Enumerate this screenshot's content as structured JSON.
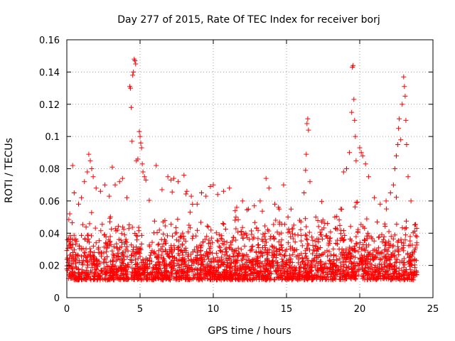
{
  "chart_data": {
    "type": "scatter",
    "title": "Day 277 of 2015, Rate Of TEC Index for receiver borj",
    "xlabel": "GPS time / hours",
    "ylabel": "ROTI / TECUs",
    "xlim": [
      0,
      25
    ],
    "ylim": [
      0,
      0.16
    ],
    "xticks": [
      0,
      5,
      10,
      15,
      20,
      25
    ],
    "yticks": [
      0,
      0.02,
      0.04,
      0.06,
      0.08,
      0.1,
      0.12,
      0.14,
      0.16
    ],
    "xtick_labels": [
      "0",
      "5",
      "10",
      "15",
      "20",
      "25"
    ],
    "ytick_labels": [
      "0",
      "0.02",
      "0.04",
      "0.06",
      "0.08",
      "0.1",
      "0.12",
      "0.14",
      "0.16"
    ],
    "grid": true,
    "marker": "plus",
    "marker_color": "#ff0000",
    "series": [
      {
        "name": "ROTI",
        "x_range_hours": [
          0,
          23.9
        ],
        "typical_band": [
          0.005,
          0.045
        ],
        "points": [
          [
            0.2,
            0.052
          ],
          [
            0.4,
            0.082
          ],
          [
            0.5,
            0.065
          ],
          [
            0.8,
            0.058
          ],
          [
            1.0,
            0.062
          ],
          [
            1.2,
            0.072
          ],
          [
            1.4,
            0.078
          ],
          [
            1.5,
            0.089
          ],
          [
            1.6,
            0.085
          ],
          [
            1.7,
            0.08
          ],
          [
            1.8,
            0.075
          ],
          [
            2.0,
            0.068
          ],
          [
            2.3,
            0.066
          ],
          [
            2.6,
            0.07
          ],
          [
            2.9,
            0.063
          ],
          [
            3.1,
            0.081
          ],
          [
            3.3,
            0.07
          ],
          [
            3.6,
            0.072
          ],
          [
            3.8,
            0.074
          ],
          [
            4.1,
            0.062
          ],
          [
            4.3,
            0.131
          ],
          [
            4.35,
            0.13
          ],
          [
            4.4,
            0.118
          ],
          [
            4.45,
            0.097
          ],
          [
            4.5,
            0.138
          ],
          [
            4.55,
            0.14
          ],
          [
            4.6,
            0.148
          ],
          [
            4.65,
            0.147
          ],
          [
            4.7,
            0.145
          ],
          [
            4.75,
            0.085
          ],
          [
            4.85,
            0.086
          ],
          [
            4.95,
            0.103
          ],
          [
            5.0,
            0.1
          ],
          [
            5.05,
            0.096
          ],
          [
            5.1,
            0.093
          ],
          [
            5.15,
            0.083
          ],
          [
            5.2,
            0.078
          ],
          [
            5.3,
            0.075
          ],
          [
            5.4,
            0.073
          ],
          [
            6.1,
            0.082
          ],
          [
            6.5,
            0.067
          ],
          [
            6.9,
            0.075
          ],
          [
            7.1,
            0.073
          ],
          [
            7.3,
            0.074
          ],
          [
            7.6,
            0.072
          ],
          [
            8.0,
            0.076
          ],
          [
            8.2,
            0.066
          ],
          [
            8.5,
            0.063
          ],
          [
            8.9,
            0.058
          ],
          [
            9.2,
            0.065
          ],
          [
            9.5,
            0.063
          ],
          [
            9.8,
            0.069
          ],
          [
            10.0,
            0.07
          ],
          [
            10.3,
            0.064
          ],
          [
            10.7,
            0.066
          ],
          [
            11.1,
            0.068
          ],
          [
            11.6,
            0.056
          ],
          [
            12.0,
            0.06
          ],
          [
            12.4,
            0.055
          ],
          [
            12.8,
            0.057
          ],
          [
            13.2,
            0.06
          ],
          [
            13.6,
            0.074
          ],
          [
            13.8,
            0.068
          ],
          [
            14.2,
            0.058
          ],
          [
            14.5,
            0.055
          ],
          [
            14.8,
            0.07
          ],
          [
            15.1,
            0.05
          ],
          [
            15.5,
            0.045
          ],
          [
            15.9,
            0.048
          ],
          [
            16.2,
            0.065
          ],
          [
            16.3,
            0.079
          ],
          [
            16.35,
            0.089
          ],
          [
            16.4,
            0.108
          ],
          [
            16.45,
            0.111
          ],
          [
            16.5,
            0.104
          ],
          [
            16.6,
            0.072
          ],
          [
            17.0,
            0.05
          ],
          [
            17.4,
            0.047
          ],
          [
            17.8,
            0.046
          ],
          [
            18.3,
            0.05
          ],
          [
            18.7,
            0.055
          ],
          [
            18.9,
            0.078
          ],
          [
            19.1,
            0.08
          ],
          [
            19.3,
            0.09
          ],
          [
            19.45,
            0.115
          ],
          [
            19.5,
            0.143
          ],
          [
            19.55,
            0.144
          ],
          [
            19.6,
            0.123
          ],
          [
            19.65,
            0.11
          ],
          [
            19.7,
            0.1
          ],
          [
            19.75,
            0.085
          ],
          [
            20.0,
            0.093
          ],
          [
            20.1,
            0.09
          ],
          [
            20.2,
            0.088
          ],
          [
            20.4,
            0.083
          ],
          [
            20.6,
            0.075
          ],
          [
            21.0,
            0.062
          ],
          [
            21.4,
            0.058
          ],
          [
            21.8,
            0.06
          ],
          [
            22.1,
            0.065
          ],
          [
            22.3,
            0.07
          ],
          [
            22.4,
            0.08
          ],
          [
            22.5,
            0.088
          ],
          [
            22.6,
            0.095
          ],
          [
            22.65,
            0.105
          ],
          [
            22.7,
            0.111
          ],
          [
            22.8,
            0.098
          ],
          [
            22.9,
            0.12
          ],
          [
            23.0,
            0.137
          ],
          [
            23.05,
            0.131
          ],
          [
            23.1,
            0.125
          ],
          [
            23.15,
            0.11
          ],
          [
            23.2,
            0.095
          ],
          [
            23.3,
            0.075
          ],
          [
            23.5,
            0.06
          ]
        ]
      }
    ]
  }
}
